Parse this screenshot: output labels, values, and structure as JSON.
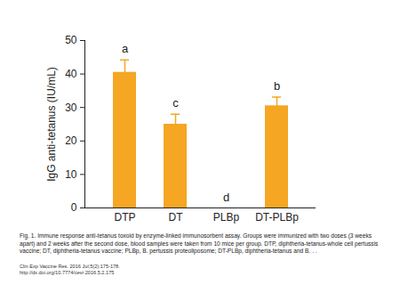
{
  "chart_data": {
    "type": "bar",
    "y_label": "IgG anti-tetanus (IU/mL)",
    "categories": [
      "DTP",
      "DT",
      "PLBp",
      "DT-PLBp"
    ],
    "values": [
      40.5,
      25,
      0,
      30.5
    ],
    "errors": [
      3.7,
      3,
      0,
      2.6
    ],
    "annotations": [
      "a",
      "c",
      "d",
      "b"
    ],
    "color": "#f5a623",
    "ylim": [
      0,
      50
    ],
    "yticks": [
      0,
      10,
      20,
      30,
      40,
      50
    ],
    "grid": false,
    "caption": "Fig. 1. Immune response anti-tetanus toxoid by enzyme-linked immunosorbent assay. Groups were immunized with two doses (3 weeks apart) and 2 weeks after the second dose, blood samples were taken from 10 mice per group. DTP, diphtheria-tetanus-whole cell pertussis vaccine; DT, diphtheria-tetanus vaccine; PLBp, B. pertussis proteoliposome; DT-PLBp, diphtheria-tetanus and B. . .",
    "source": [
      "Clin Exp Vaccine Res. 2016 Jul;5(2):175-178.",
      "http://dx.doi.org/10.7774/cevr.2016.5.2.175"
    ]
  }
}
